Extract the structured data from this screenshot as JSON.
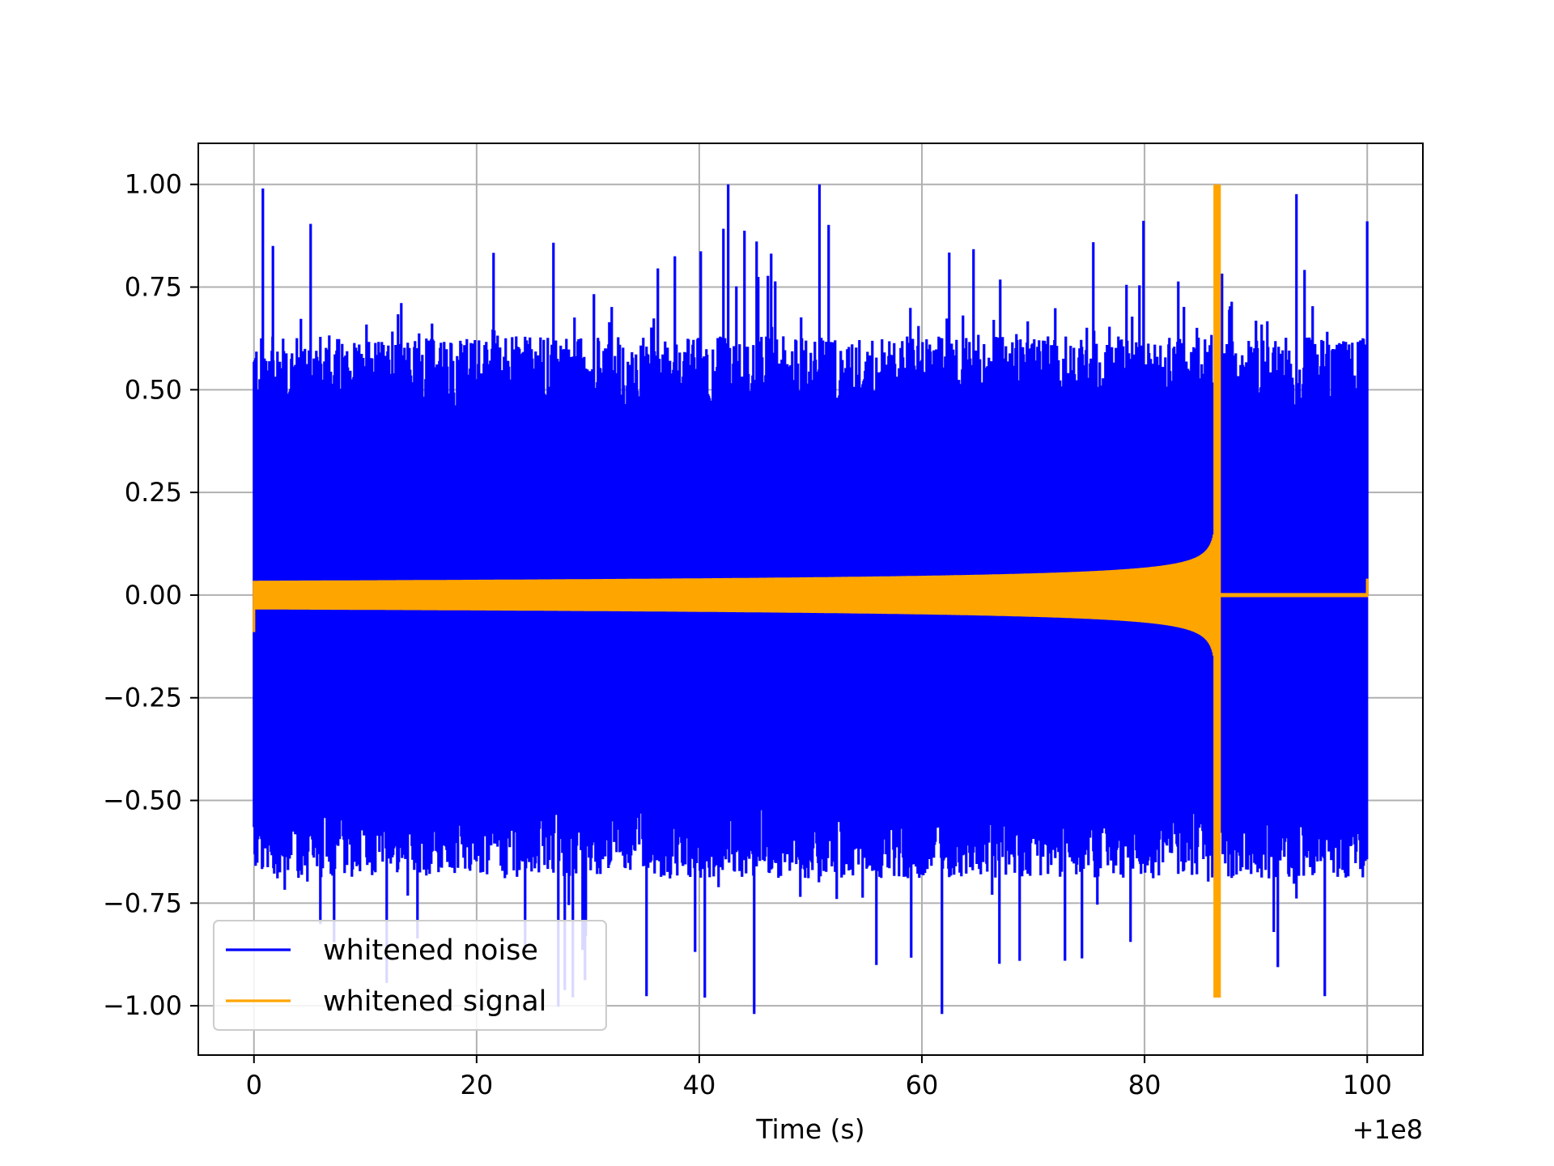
{
  "chart_data": {
    "type": "line",
    "title": "",
    "xlabel": "Time (s)",
    "ylabel": "",
    "x_offset_label": "+1e8",
    "xlim": [
      -5,
      105
    ],
    "ylim": [
      -1.12,
      1.1
    ],
    "x_ticks": [
      0,
      20,
      40,
      60,
      80,
      100
    ],
    "x_tick_labels": [
      "0",
      "20",
      "40",
      "60",
      "80",
      "100"
    ],
    "y_ticks": [
      1.0,
      0.75,
      0.5,
      0.25,
      0.0,
      -0.25,
      -0.5,
      -0.75,
      -1.0
    ],
    "y_tick_labels": [
      "1.00",
      "0.75",
      "0.50",
      "0.25",
      "0.00",
      "−0.25",
      "−0.50",
      "−0.75",
      "−1.00"
    ],
    "grid": true,
    "legend_position": "lower-left",
    "series": [
      {
        "name": "whitened noise",
        "color": "#0000ff",
        "x_range": [
          0,
          100
        ],
        "typical_amplitude": 0.6,
        "max": 1.0,
        "min": -1.02,
        "notable_peaks": [
          {
            "x": 0.8,
            "y": 0.99
          },
          {
            "x": 1.7,
            "y": 0.85
          },
          {
            "x": 42.6,
            "y": 1.0
          },
          {
            "x": 50.8,
            "y": 1.0
          },
          {
            "x": 61.8,
            "y": -1.02
          },
          {
            "x": 100.0,
            "y": 0.91
          },
          {
            "x": 40.5,
            "y": -0.98
          }
        ]
      },
      {
        "name": "whitened signal",
        "color": "#ffa500",
        "type": "chirp",
        "x_range": [
          0,
          100
        ],
        "start_amplitude": 0.035,
        "merger_time": 86.5,
        "peak_amplitude": 1.0,
        "min": -0.98,
        "post_merger_amplitude": 0.005
      }
    ]
  }
}
